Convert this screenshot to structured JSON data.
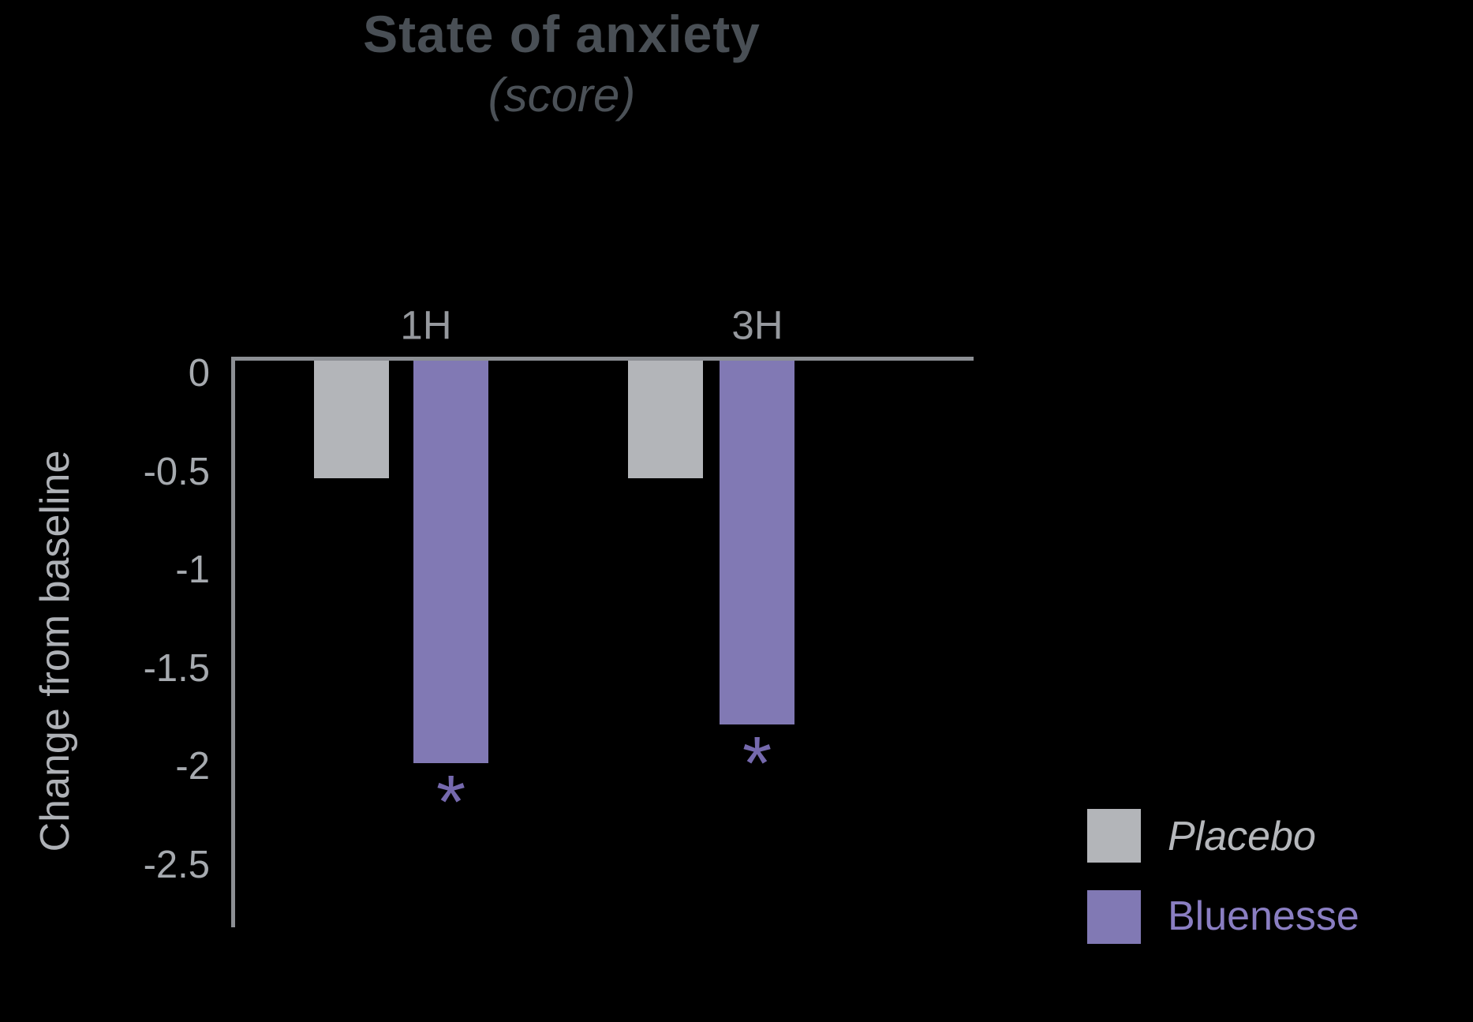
{
  "title": "State of anxiety",
  "subtitle": "(score)",
  "y_axis": {
    "label": "Change from baseline"
  },
  "legend": [
    {
      "label": "Placebo",
      "color": "#b3b5b9",
      "italic": true
    },
    {
      "label": "Bluenesse",
      "color": "#8179b4",
      "italic": false
    }
  ],
  "significance_marker": "*",
  "colors": {
    "background": "#000000",
    "title": "#494f55",
    "axis_line": "#8c8f94",
    "tick_text": "#a6aaaf",
    "category_text": "#96999e",
    "y_label_text": "#aeb1b6",
    "placebo_bar": "#b3b5b9",
    "bluenesse_bar": "#8179b4",
    "asterisk": "#7569ad",
    "legend_placebo_text": "#b5b7bb",
    "legend_bluenesse_text": "#8a7ec2"
  },
  "chart_data": {
    "type": "bar",
    "title": "State of anxiety",
    "subtitle": "(score)",
    "categories": [
      "1H",
      "3H"
    ],
    "series": [
      {
        "name": "Placebo",
        "color": "#b3b5b9",
        "values": [
          -0.6,
          -0.6
        ],
        "significance": [
          "",
          ""
        ]
      },
      {
        "name": "Bluenesse",
        "color": "#8179b4",
        "values": [
          -2.05,
          -1.85
        ],
        "significance": [
          "*",
          "*"
        ]
      }
    ],
    "xlabel": "",
    "ylabel": "Change from baseline",
    "yticks": [
      0,
      -0.5,
      -1,
      -1.5,
      -2,
      -2.5
    ],
    "ytick_labels": [
      "0",
      "-0.5",
      "-1",
      "-1.5",
      "-2",
      "-2.5"
    ],
    "ylim": [
      0.05,
      -2.82
    ],
    "grid": false,
    "bars_hang_from_zero_line_at_top": true,
    "legend_position": "bottom-right",
    "annotations": "asterisk below each Bluenesse bar indicates significance"
  }
}
